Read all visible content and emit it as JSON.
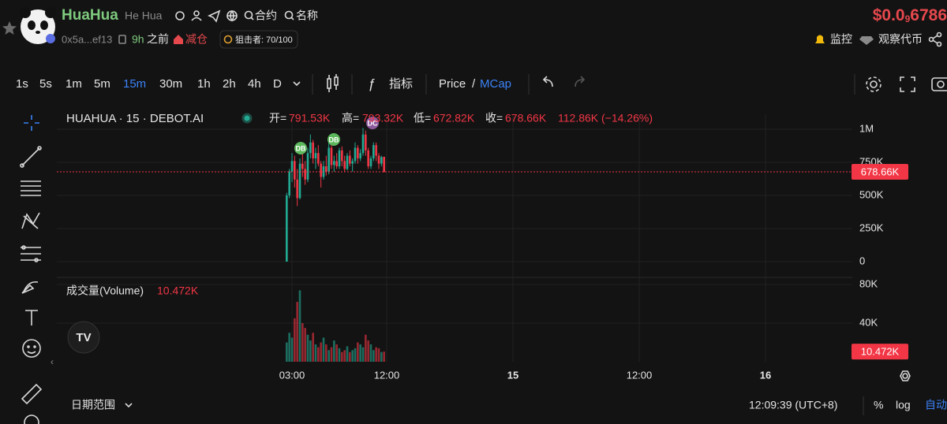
{
  "header": {
    "name": "HuaHua",
    "alias": "He Hua",
    "search_contract": "合约",
    "search_name": "名称",
    "price_prefix": "$0.0",
    "price_zeros": "9",
    "price_digits": "6786",
    "address": "0x5a...ef13",
    "age": "9h",
    "age_suffix": "之前",
    "action": "减仓",
    "sniper": "狙击者: 70/100",
    "watch": "监控",
    "watch_token": "观察代币"
  },
  "toolbar": {
    "intervals": [
      "1s",
      "5s",
      "1m",
      "5m",
      "15m",
      "30m",
      "1h",
      "2h",
      "4h",
      "D"
    ],
    "active_interval": 4,
    "indicators": "指标",
    "price": "Price",
    "slash": "/",
    "mcap": "MCap"
  },
  "footer": {
    "date_range": "日期范围",
    "clock": "12:09:39 (UTC+8)",
    "percent": "%",
    "log": "log",
    "auto": "自动"
  },
  "chart_data": {
    "type": "candlestick",
    "title": "HUAHUA · 15 · DEBOT.AI",
    "legend": {
      "open_label": "开=",
      "open": "791.53K",
      "high_label": "高=",
      "high": "793.32K",
      "low_label": "低=",
      "low": "672.82K",
      "close_label": "收=",
      "change": "112.86K (−14.26%)"
    },
    "x": [
      2.5,
      2.75,
      3,
      3.25,
      3.5,
      3.75,
      4,
      4.25,
      4.5,
      4.75,
      5,
      5.25,
      5.5,
      5.75,
      6,
      6.25,
      6.5,
      6.75,
      7,
      7.25,
      7.5,
      7.75,
      8,
      8.25,
      8.5,
      8.75,
      9,
      9.25,
      9.5,
      9.75,
      10,
      10.25,
      10.5,
      10.75,
      11,
      11.25,
      11.5,
      11.75
    ],
    "open": [
      0,
      500000,
      680000,
      760000,
      620000,
      480000,
      740000,
      700000,
      620000,
      820000,
      900000,
      780000,
      820000,
      740000,
      640000,
      720000,
      680000,
      860000,
      730000,
      760000,
      720000,
      840000,
      760000,
      700000,
      800000,
      740000,
      760000,
      860000,
      780000,
      820000,
      960000,
      840000,
      720000,
      780000,
      880000,
      800000,
      740000,
      791530
    ],
    "high": [
      520000,
      700000,
      820000,
      800000,
      700000,
      780000,
      830000,
      760000,
      860000,
      960000,
      920000,
      860000,
      880000,
      760000,
      760000,
      800000,
      900000,
      880000,
      800000,
      820000,
      860000,
      870000,
      800000,
      820000,
      840000,
      780000,
      900000,
      880000,
      850000,
      1010000,
      990000,
      860000,
      800000,
      900000,
      900000,
      820000,
      800000,
      793320
    ],
    "low": [
      0,
      480000,
      600000,
      560000,
      420000,
      470000,
      640000,
      580000,
      600000,
      780000,
      740000,
      700000,
      720000,
      560000,
      620000,
      650000,
      660000,
      700000,
      680000,
      700000,
      700000,
      720000,
      680000,
      690000,
      720000,
      680000,
      740000,
      740000,
      760000,
      800000,
      800000,
      700000,
      700000,
      760000,
      760000,
      700000,
      720000,
      672820
    ],
    "close": [
      500000,
      680000,
      760000,
      620000,
      480000,
      740000,
      700000,
      620000,
      820000,
      900000,
      780000,
      820000,
      740000,
      640000,
      720000,
      680000,
      860000,
      730000,
      760000,
      720000,
      840000,
      760000,
      700000,
      800000,
      740000,
      760000,
      860000,
      780000,
      820000,
      960000,
      840000,
      720000,
      780000,
      880000,
      800000,
      740000,
      790000,
      678660
    ],
    "up_color": "#22ab94",
    "down_color": "#f23645",
    "xlim": [
      -19.35,
      56.25
    ],
    "xticks": [
      {
        "value": 3,
        "label": "03:00"
      },
      {
        "value": 12,
        "label": "12:00"
      },
      {
        "value": 24,
        "label": "15"
      },
      {
        "value": 36,
        "label": "12:00"
      },
      {
        "value": 48,
        "label": "16"
      }
    ],
    "ylim": [
      -137000,
      1113000
    ],
    "yticks": [
      0,
      {
        "value": 250000,
        "label": "250K"
      },
      {
        "value": 500000,
        "label": "500K"
      },
      {
        "value": 750000,
        "label": "750K"
      },
      {
        "value": 1000000,
        "label": "1M"
      }
    ],
    "last_price": {
      "value": 678660,
      "label": "678.66K"
    },
    "markers": [
      {
        "label": "DB",
        "color": "#5cb85c"
      },
      {
        "label": "DB",
        "color": "#5cb85c"
      },
      {
        "label": "DC",
        "color": "#8e5a9e"
      }
    ],
    "volume": {
      "title": "成交量(Volume)",
      "values": [
        20000,
        30000,
        25000,
        45000,
        62000,
        74000,
        40000,
        35000,
        28000,
        22000,
        30000,
        18000,
        15000,
        20000,
        25000,
        18000,
        12000,
        15000,
        22000,
        18000,
        14000,
        10000,
        12000,
        16000,
        10000,
        12000,
        14000,
        20000,
        18000,
        15000,
        28000,
        22000,
        18000,
        12000,
        15000,
        14000,
        10000,
        10472
      ],
      "ylim": [
        0,
        84900
      ],
      "yticks": [
        {
          "value": 40000,
          "label": "40K"
        },
        {
          "value": 80000,
          "label": "80K"
        }
      ],
      "last": {
        "value": 10472,
        "label": "10.472K"
      }
    }
  }
}
